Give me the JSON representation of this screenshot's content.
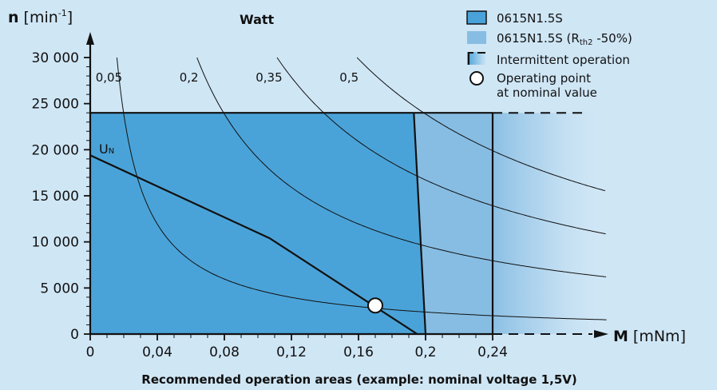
{
  "chart_data": {
    "type": "area",
    "title": "",
    "xlabel": {
      "symbol": "M",
      "unit": "[mNm]"
    },
    "ylabel": {
      "symbol": "n",
      "unit_prefix": "[min",
      "unit_exp": "-1",
      "unit_suffix": "]"
    },
    "power_label": "Watt",
    "caption": "Recommended operation areas (example: nominal voltage 1,5V)",
    "xlim": [
      0,
      0.24
    ],
    "ylim": [
      0,
      30000
    ],
    "x_ticks": [
      {
        "value": 0,
        "label": "0"
      },
      {
        "value": 0.04,
        "label": "0,04"
      },
      {
        "value": 0.08,
        "label": "0,08"
      },
      {
        "value": 0.12,
        "label": "0,12"
      },
      {
        "value": 0.16,
        "label": "0,16"
      },
      {
        "value": 0.2,
        "label": "0,2"
      },
      {
        "value": 0.24,
        "label": "0,24"
      }
    ],
    "y_ticks": [
      {
        "value": 0,
        "label": "0"
      },
      {
        "value": 5000,
        "label": "5 000"
      },
      {
        "value": 10000,
        "label": "10 000"
      },
      {
        "value": 15000,
        "label": "15 000"
      },
      {
        "value": 20000,
        "label": "20 000"
      },
      {
        "value": 25000,
        "label": "25 000"
      },
      {
        "value": 30000,
        "label": "30 000"
      }
    ],
    "speed_limit": 24000,
    "continuous_area": {
      "name": "0615N1.5S",
      "color": "#4aa3d8",
      "boundary_bottom_torque": 0.2,
      "boundary_top_torque": 0.193
    },
    "reduced_rth_area": {
      "name": "0615N1.5S (R",
      "sub": "th2",
      "suffix": " -50%)",
      "color": "#87bde3",
      "boundary_torque": 0.24
    },
    "intermittent": {
      "name": "Intermittent operation"
    },
    "operating_point": {
      "name_line1": "Operating point",
      "name_line2": "at nominal value",
      "torque": 0.17,
      "speed": 3100
    },
    "un_line": {
      "label": "U",
      "sub": "N",
      "points": [
        [
          0,
          19400
        ],
        [
          0.107,
          10400
        ],
        [
          0.195,
          0
        ]
      ]
    },
    "power_curves": [
      {
        "label": "0,05",
        "watts": 0.05
      },
      {
        "label": "0,2",
        "watts": 0.2
      },
      {
        "label": "0,35",
        "watts": 0.35
      },
      {
        "label": "0,5",
        "watts": 0.5
      }
    ]
  }
}
